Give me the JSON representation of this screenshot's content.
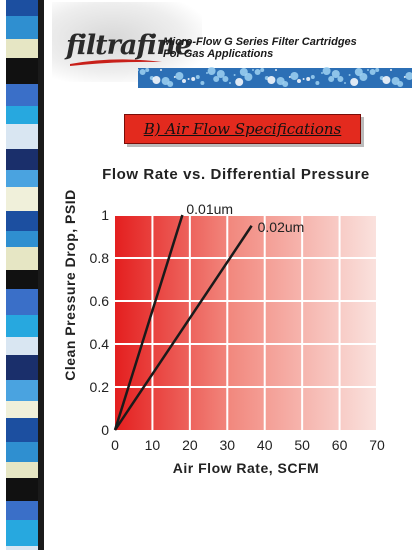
{
  "header": {
    "logo": "filtrafine",
    "subtitle_line1": "Micro-Flow G Series Filter Cartridges",
    "subtitle_line2": "For Gas Applications"
  },
  "banner": {
    "text": "B) Air Flow Specifications"
  },
  "colors": {
    "accent": "#e32a1e",
    "plot_gradient_start": "#e41f1f",
    "plot_gradient_end": "#fae2de"
  },
  "chart_data": {
    "type": "line",
    "title": "Flow Rate vs. Differential Pressure",
    "xlabel": "Air Flow Rate, SCFM",
    "ylabel": "Clean Pressure Drop, PSID",
    "xlim": [
      0,
      70
    ],
    "ylim": [
      0,
      1
    ],
    "x_ticks": [
      "0",
      "10",
      "20",
      "30",
      "40",
      "50",
      "60",
      "70"
    ],
    "y_ticks": [
      "0",
      "0.2",
      "0.4",
      "0.6",
      "0.8",
      "1"
    ],
    "grid": true,
    "series": [
      {
        "name": "0.01um",
        "x": [
          0,
          18
        ],
        "y": [
          0,
          1
        ]
      },
      {
        "name": "0.02um",
        "x": [
          0,
          36.5
        ],
        "y": [
          0,
          0.95
        ]
      }
    ]
  }
}
